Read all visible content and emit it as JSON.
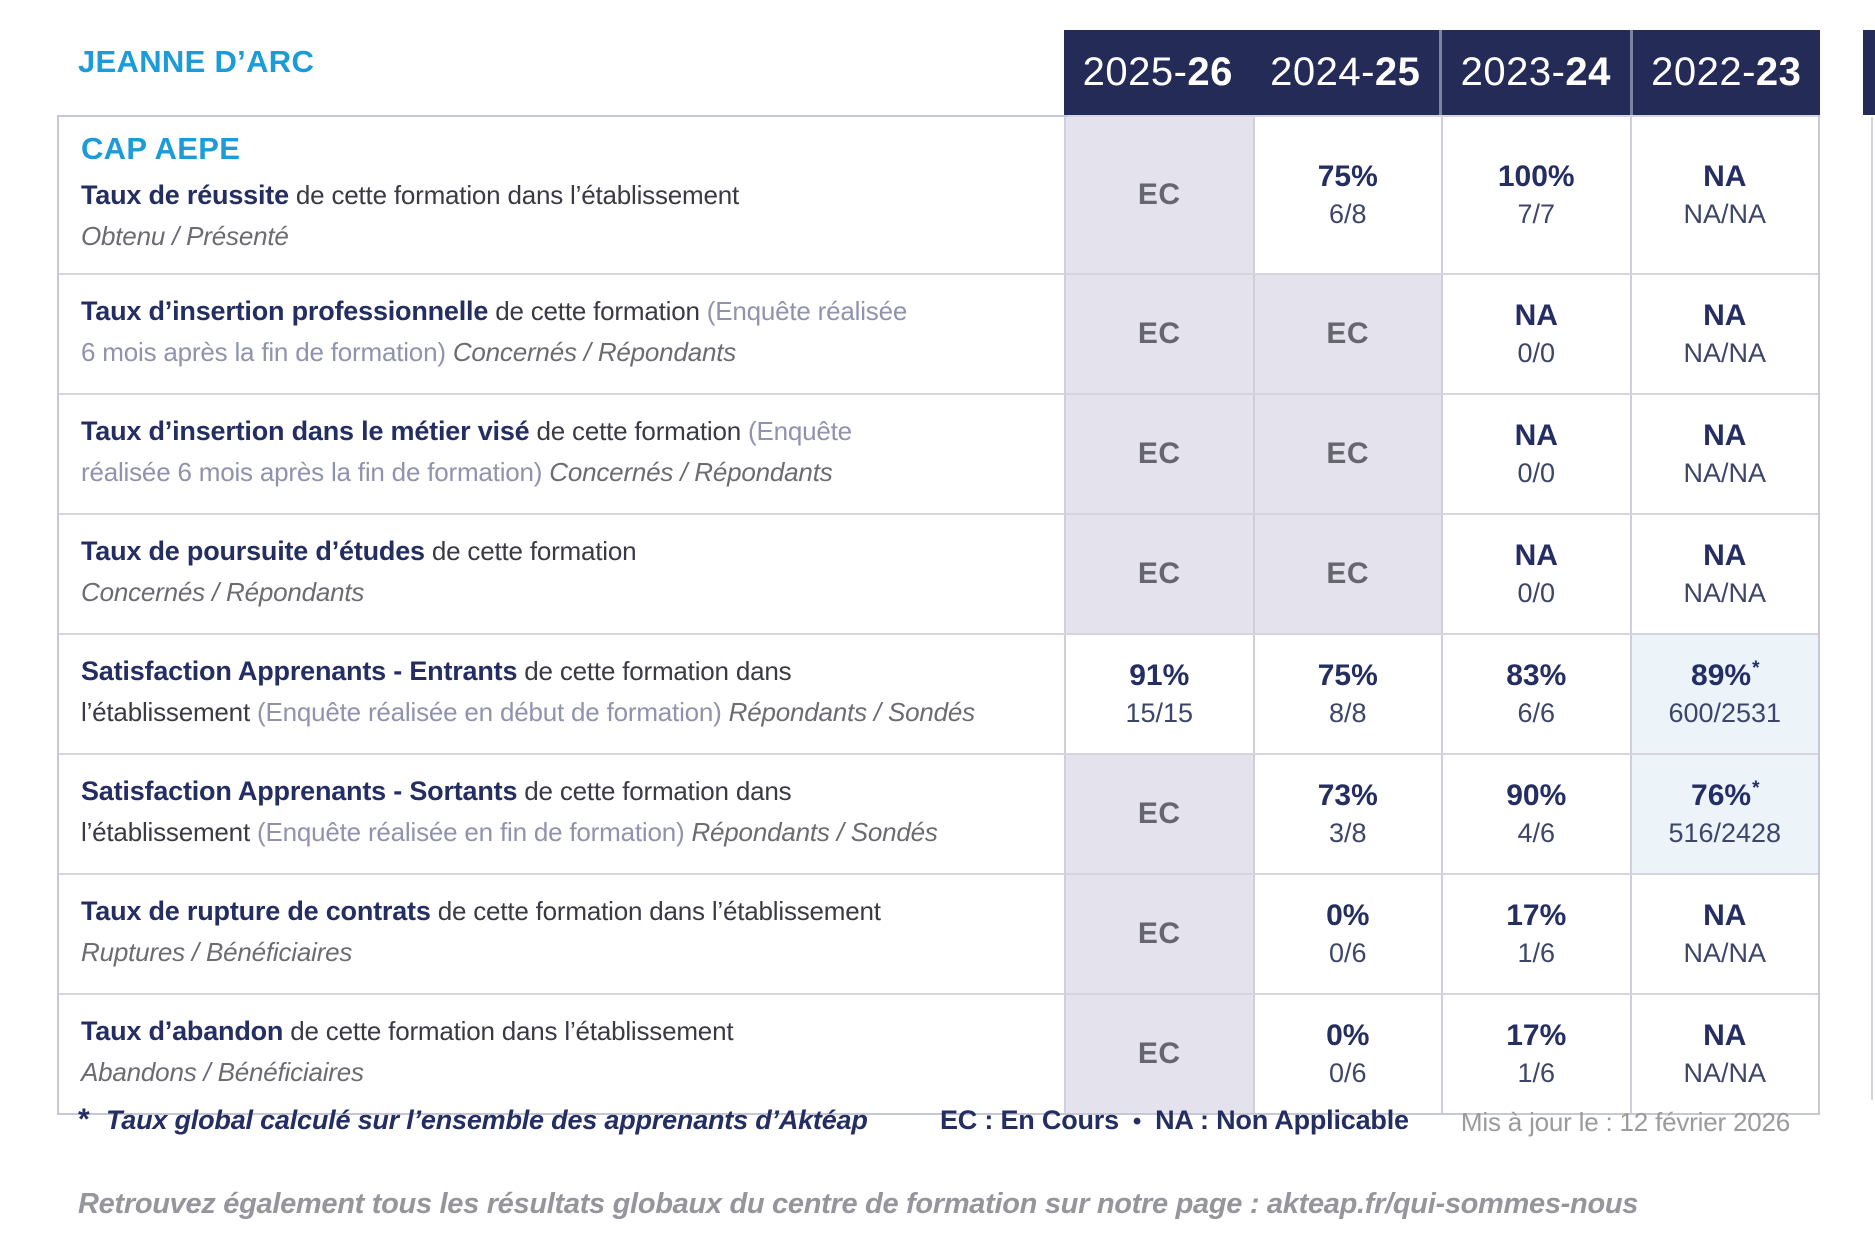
{
  "brand": "JEANNE D’ARC",
  "years": [
    {
      "prefix": "2025-",
      "bold": "26"
    },
    {
      "prefix": "2024-",
      "bold": "25"
    },
    {
      "prefix": "2023-",
      "bold": "24"
    },
    {
      "prefix": "2022-",
      "bold": "23"
    }
  ],
  "colors": {
    "accent_blue": "#1b9bd8",
    "header_navy": "#252b57",
    "title_navy": "#242e62",
    "ec_cell_bg": "#e4e3ed",
    "star_cell_bg": "#ecf4fa"
  },
  "rows": [
    {
      "heading": "CAP AEPE",
      "label_lines": [
        [
          {
            "text": "Taux de réussite",
            "style": "title"
          },
          {
            "text": " de cette formation dans l’établissement",
            "style": "body"
          }
        ],
        [
          {
            "text": "Obtenu / Présenté",
            "style": "note"
          }
        ]
      ],
      "values": [
        {
          "main": "EC",
          "type": "ec"
        },
        {
          "main": "75%",
          "sub": "6/8"
        },
        {
          "main": "100%",
          "sub": "7/7"
        },
        {
          "main": "NA",
          "sub": "NA/NA"
        }
      ]
    },
    {
      "label_lines": [
        [
          {
            "text": "Taux d’insertion professionnelle",
            "style": "title"
          },
          {
            "text": " de cette formation ",
            "style": "body"
          },
          {
            "text": "(Enquête réalisée",
            "style": "paren"
          }
        ],
        [
          {
            "text": "6 mois après la fin de formation)",
            "style": "paren"
          },
          {
            "text": " Concernés / Répondants",
            "style": "note"
          }
        ]
      ],
      "values": [
        {
          "main": "EC",
          "type": "ec"
        },
        {
          "main": "EC",
          "type": "ec"
        },
        {
          "main": "NA",
          "sub": "0/0"
        },
        {
          "main": "NA",
          "sub": "NA/NA"
        }
      ]
    },
    {
      "label_lines": [
        [
          {
            "text": "Taux d’insertion dans le métier visé",
            "style": "title"
          },
          {
            "text": " de cette formation ",
            "style": "body"
          },
          {
            "text": "(Enquête",
            "style": "paren"
          }
        ],
        [
          {
            "text": "réalisée 6 mois après la fin de formation)",
            "style": "paren"
          },
          {
            "text": " Concernés / Répondants",
            "style": "note"
          }
        ]
      ],
      "values": [
        {
          "main": "EC",
          "type": "ec"
        },
        {
          "main": "EC",
          "type": "ec"
        },
        {
          "main": "NA",
          "sub": "0/0"
        },
        {
          "main": "NA",
          "sub": "NA/NA"
        }
      ]
    },
    {
      "label_lines": [
        [
          {
            "text": "Taux de poursuite d’études",
            "style": "title"
          },
          {
            "text": " de cette formation",
            "style": "body"
          }
        ],
        [
          {
            "text": "Concernés / Répondants",
            "style": "note"
          }
        ]
      ],
      "values": [
        {
          "main": "EC",
          "type": "ec"
        },
        {
          "main": "EC",
          "type": "ec"
        },
        {
          "main": "NA",
          "sub": "0/0"
        },
        {
          "main": "NA",
          "sub": "NA/NA"
        }
      ]
    },
    {
      "label_lines": [
        [
          {
            "text": "Satisfaction Apprenants - Entrants",
            "style": "title"
          },
          {
            "text": " de cette formation dans",
            "style": "body"
          }
        ],
        [
          {
            "text": "l’établissement ",
            "style": "body"
          },
          {
            "text": "(Enquête réalisée en début de formation)",
            "style": "paren"
          },
          {
            "text": " Répondants / Sondés",
            "style": "note"
          }
        ]
      ],
      "values": [
        {
          "main": "91%",
          "sub": "15/15"
        },
        {
          "main": "75%",
          "sub": "8/8"
        },
        {
          "main": "83%",
          "sub": "6/6"
        },
        {
          "main": "89%",
          "sub": "600/2531",
          "star": true
        }
      ]
    },
    {
      "label_lines": [
        [
          {
            "text": "Satisfaction Apprenants - Sortants",
            "style": "title"
          },
          {
            "text": " de cette formation dans",
            "style": "body"
          }
        ],
        [
          {
            "text": "l’établissement ",
            "style": "body"
          },
          {
            "text": "(Enquête réalisée en fin de formation)",
            "style": "paren"
          },
          {
            "text": " Répondants / Sondés",
            "style": "note"
          }
        ]
      ],
      "values": [
        {
          "main": "EC",
          "type": "ec"
        },
        {
          "main": "73%",
          "sub": "3/8"
        },
        {
          "main": "90%",
          "sub": "4/6"
        },
        {
          "main": "76%",
          "sub": "516/2428",
          "star": true
        }
      ]
    },
    {
      "label_lines": [
        [
          {
            "text": "Taux de rupture de contrats",
            "style": "title"
          },
          {
            "text": " de cette formation dans l’établissement",
            "style": "body"
          }
        ],
        [
          {
            "text": "Ruptures / Bénéficiaires",
            "style": "note"
          }
        ]
      ],
      "values": [
        {
          "main": "EC",
          "type": "ec"
        },
        {
          "main": "0%",
          "sub": "0/6"
        },
        {
          "main": "17%",
          "sub": "1/6"
        },
        {
          "main": "NA",
          "sub": "NA/NA"
        }
      ]
    },
    {
      "label_lines": [
        [
          {
            "text": "Taux d’abandon",
            "style": "title"
          },
          {
            "text": " de cette formation dans l’établissement",
            "style": "body"
          }
        ],
        [
          {
            "text": "Abandons / Bénéficiaires",
            "style": "note"
          }
        ]
      ],
      "values": [
        {
          "main": "EC",
          "type": "ec"
        },
        {
          "main": "0%",
          "sub": "0/6"
        },
        {
          "main": "17%",
          "sub": "1/6"
        },
        {
          "main": "NA",
          "sub": "NA/NA"
        }
      ]
    }
  ],
  "footnote": {
    "star": "*",
    "text": "Taux global calculé sur l’ensemble des apprenants d’Aktéap",
    "legend_ec": "EC : En Cours",
    "bullet": "•",
    "legend_na": "NA : Non Applicable",
    "updated": "Mis à jour le : 12 février 2026"
  },
  "footer": "Retrouvez également tous les résultats globaux du centre de formation sur notre page : akteap.fr/qui-sommes-nous"
}
